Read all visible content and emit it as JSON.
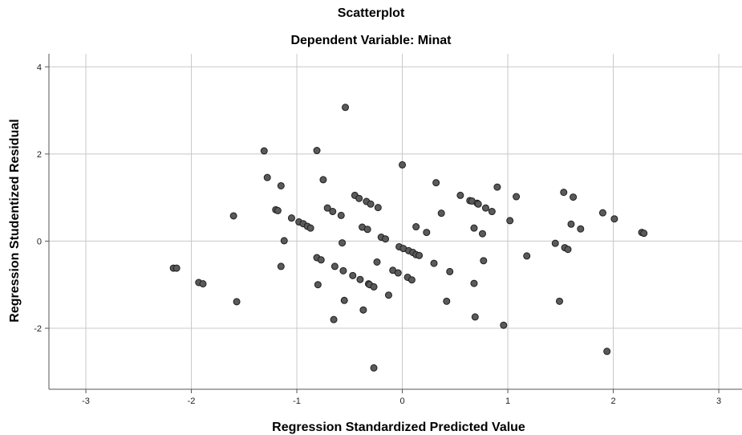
{
  "chart_data": {
    "type": "scatter",
    "title": "Scatterplot",
    "subtitle": "Dependent Variable: Minat",
    "xlabel": "Regression Standardized Predicted Value",
    "ylabel": "Regression Studentized Residual",
    "xlim": [
      -3.35,
      3.22
    ],
    "ylim": [
      -3.4,
      4.3
    ],
    "x_ticks": [
      -3,
      -2,
      -1,
      0,
      1,
      2,
      3
    ],
    "y_ticks": [
      -2,
      0,
      2,
      4
    ],
    "grid": true,
    "point_color": "#5a5a5a",
    "points": [
      {
        "x": -2.17,
        "y": -0.62
      },
      {
        "x": -2.14,
        "y": -0.62
      },
      {
        "x": -1.93,
        "y": -0.95
      },
      {
        "x": -1.89,
        "y": -0.98
      },
      {
        "x": -1.6,
        "y": 0.58
      },
      {
        "x": -1.57,
        "y": -1.39
      },
      {
        "x": -1.31,
        "y": 2.07
      },
      {
        "x": -1.28,
        "y": 1.46
      },
      {
        "x": -1.2,
        "y": 0.72
      },
      {
        "x": -1.18,
        "y": 0.7
      },
      {
        "x": -1.15,
        "y": 1.27
      },
      {
        "x": -1.15,
        "y": -0.58
      },
      {
        "x": -1.12,
        "y": 0.01
      },
      {
        "x": -1.05,
        "y": 0.53
      },
      {
        "x": -0.98,
        "y": 0.44
      },
      {
        "x": -0.94,
        "y": 0.4
      },
      {
        "x": -0.9,
        "y": 0.34
      },
      {
        "x": -0.87,
        "y": 0.3
      },
      {
        "x": -0.81,
        "y": 2.08
      },
      {
        "x": -0.81,
        "y": -0.38
      },
      {
        "x": -0.8,
        "y": -1.0
      },
      {
        "x": -0.77,
        "y": -0.43
      },
      {
        "x": -0.75,
        "y": 1.41
      },
      {
        "x": -0.71,
        "y": 0.76
      },
      {
        "x": -0.66,
        "y": 0.68
      },
      {
        "x": -0.65,
        "y": -1.8
      },
      {
        "x": -0.64,
        "y": -0.58
      },
      {
        "x": -0.58,
        "y": 0.59
      },
      {
        "x": -0.57,
        "y": -0.04
      },
      {
        "x": -0.56,
        "y": -0.68
      },
      {
        "x": -0.55,
        "y": -1.36
      },
      {
        "x": -0.54,
        "y": 3.07
      },
      {
        "x": -0.47,
        "y": -0.79
      },
      {
        "x": -0.45,
        "y": 1.05
      },
      {
        "x": -0.41,
        "y": 0.98
      },
      {
        "x": -0.4,
        "y": -0.88
      },
      {
        "x": -0.38,
        "y": 0.32
      },
      {
        "x": -0.37,
        "y": -1.58
      },
      {
        "x": -0.34,
        "y": 0.91
      },
      {
        "x": -0.33,
        "y": 0.27
      },
      {
        "x": -0.32,
        "y": -0.98
      },
      {
        "x": -0.31,
        "y": -1.0
      },
      {
        "x": -0.3,
        "y": 0.85
      },
      {
        "x": -0.27,
        "y": -1.05
      },
      {
        "x": -0.27,
        "y": -2.91
      },
      {
        "x": -0.24,
        "y": -0.48
      },
      {
        "x": -0.23,
        "y": 0.77
      },
      {
        "x": -0.2,
        "y": 0.09
      },
      {
        "x": -0.16,
        "y": 0.05
      },
      {
        "x": -0.13,
        "y": -1.24
      },
      {
        "x": -0.09,
        "y": -0.67
      },
      {
        "x": -0.04,
        "y": -0.73
      },
      {
        "x": -0.03,
        "y": -0.13
      },
      {
        "x": 0.0,
        "y": 1.75
      },
      {
        "x": 0.01,
        "y": -0.17
      },
      {
        "x": 0.05,
        "y": -0.83
      },
      {
        "x": 0.06,
        "y": -0.22
      },
      {
        "x": 0.09,
        "y": -0.89
      },
      {
        "x": 0.1,
        "y": -0.26
      },
      {
        "x": 0.13,
        "y": 0.33
      },
      {
        "x": 0.13,
        "y": -0.31
      },
      {
        "x": 0.16,
        "y": -0.33
      },
      {
        "x": 0.23,
        "y": 0.2
      },
      {
        "x": 0.3,
        "y": -0.51
      },
      {
        "x": 0.32,
        "y": 1.34
      },
      {
        "x": 0.37,
        "y": 0.64
      },
      {
        "x": 0.42,
        "y": -1.38
      },
      {
        "x": 0.45,
        "y": -0.7
      },
      {
        "x": 0.55,
        "y": 1.05
      },
      {
        "x": 0.64,
        "y": 0.93
      },
      {
        "x": 0.66,
        "y": 0.92
      },
      {
        "x": 0.68,
        "y": 0.3
      },
      {
        "x": 0.68,
        "y": -0.97
      },
      {
        "x": 0.69,
        "y": -1.74
      },
      {
        "x": 0.71,
        "y": 0.87
      },
      {
        "x": 0.72,
        "y": 0.85
      },
      {
        "x": 0.76,
        "y": 0.17
      },
      {
        "x": 0.77,
        "y": -0.45
      },
      {
        "x": 0.79,
        "y": 0.76
      },
      {
        "x": 0.85,
        "y": 0.68
      },
      {
        "x": 0.9,
        "y": 1.24
      },
      {
        "x": 0.96,
        "y": -1.93
      },
      {
        "x": 1.02,
        "y": 0.47
      },
      {
        "x": 1.08,
        "y": 1.02
      },
      {
        "x": 1.18,
        "y": -0.34
      },
      {
        "x": 1.45,
        "y": -0.05
      },
      {
        "x": 1.49,
        "y": -1.38
      },
      {
        "x": 1.53,
        "y": 1.12
      },
      {
        "x": 1.54,
        "y": -0.15
      },
      {
        "x": 1.57,
        "y": -0.19
      },
      {
        "x": 1.6,
        "y": 0.39
      },
      {
        "x": 1.62,
        "y": 1.01
      },
      {
        "x": 1.69,
        "y": 0.28
      },
      {
        "x": 1.9,
        "y": 0.65
      },
      {
        "x": 1.94,
        "y": -2.53
      },
      {
        "x": 2.01,
        "y": 0.51
      },
      {
        "x": 2.27,
        "y": 0.2
      },
      {
        "x": 2.29,
        "y": 0.18
      }
    ]
  }
}
